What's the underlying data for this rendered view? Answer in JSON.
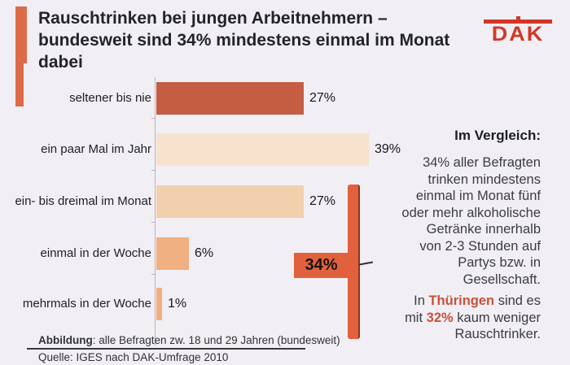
{
  "title": {
    "lines": [
      "Rauschtrinken bei jungen Arbeitnehmern –",
      "bundesweit sind 34% mindestens einmal im Monat",
      "dabei"
    ]
  },
  "logo": {
    "text": "DAK"
  },
  "chart_data": {
    "type": "bar",
    "orientation": "horizontal",
    "title": "Rauschtrinken bei jungen Arbeitnehmern – bundesweit sind 34% mindestens einmal im Monat dabei",
    "categories": [
      "seltener bis nie",
      "ein paar Mal im Jahr",
      "ein- bis dreimal im Monat",
      "einmal in der Woche",
      "mehrmals in der Woche"
    ],
    "values": [
      27,
      39,
      27,
      6,
      1
    ],
    "value_labels": [
      "27%",
      "39%",
      "27%",
      "6%",
      "1%"
    ],
    "unit": "%",
    "xlim": [
      0,
      40
    ],
    "grid": false,
    "bar_colors": [
      "#c55d42",
      "#f7e3cd",
      "#f2cfad",
      "#f0b081",
      "#f0b081"
    ],
    "group_annotation": {
      "label": "34%",
      "spans_categories": [
        "ein- bis dreimal im Monat",
        "einmal in der Woche",
        "mehrmals in der Woche"
      ],
      "color": "#e2613d"
    }
  },
  "comparison": {
    "heading": "Im Vergleich:",
    "paragraph1_lines": [
      "34% aller Befragten",
      "trinken mindestens",
      "einmal im Monat fünf",
      "oder mehr alkoholische",
      "Getränke innerhalb",
      "von 2-3 Stunden auf",
      "Partys bzw. in",
      "Gesellschaft."
    ],
    "paragraph2": {
      "line1": {
        "pre": "In ",
        "highlight": "Thüringen",
        "post": " sind es"
      },
      "line2": {
        "pre": "mit ",
        "highlight": "32%",
        "post": " kaum weniger"
      },
      "line3": "Rauschtrinker."
    },
    "highlight_color": "#c9503a"
  },
  "footer": {
    "figure_label": "Abbildung",
    "figure_text": ": alle Befragten zw. 18 und 29 Jahren (bundesweit)",
    "source": "Quelle: IGES nach DAK-Umfrage 2010"
  },
  "colors": {
    "background": "#f1eff4",
    "accent": "#dd6b4a",
    "logo_red": "#d43726",
    "annotation_orange": "#e2613d"
  }
}
